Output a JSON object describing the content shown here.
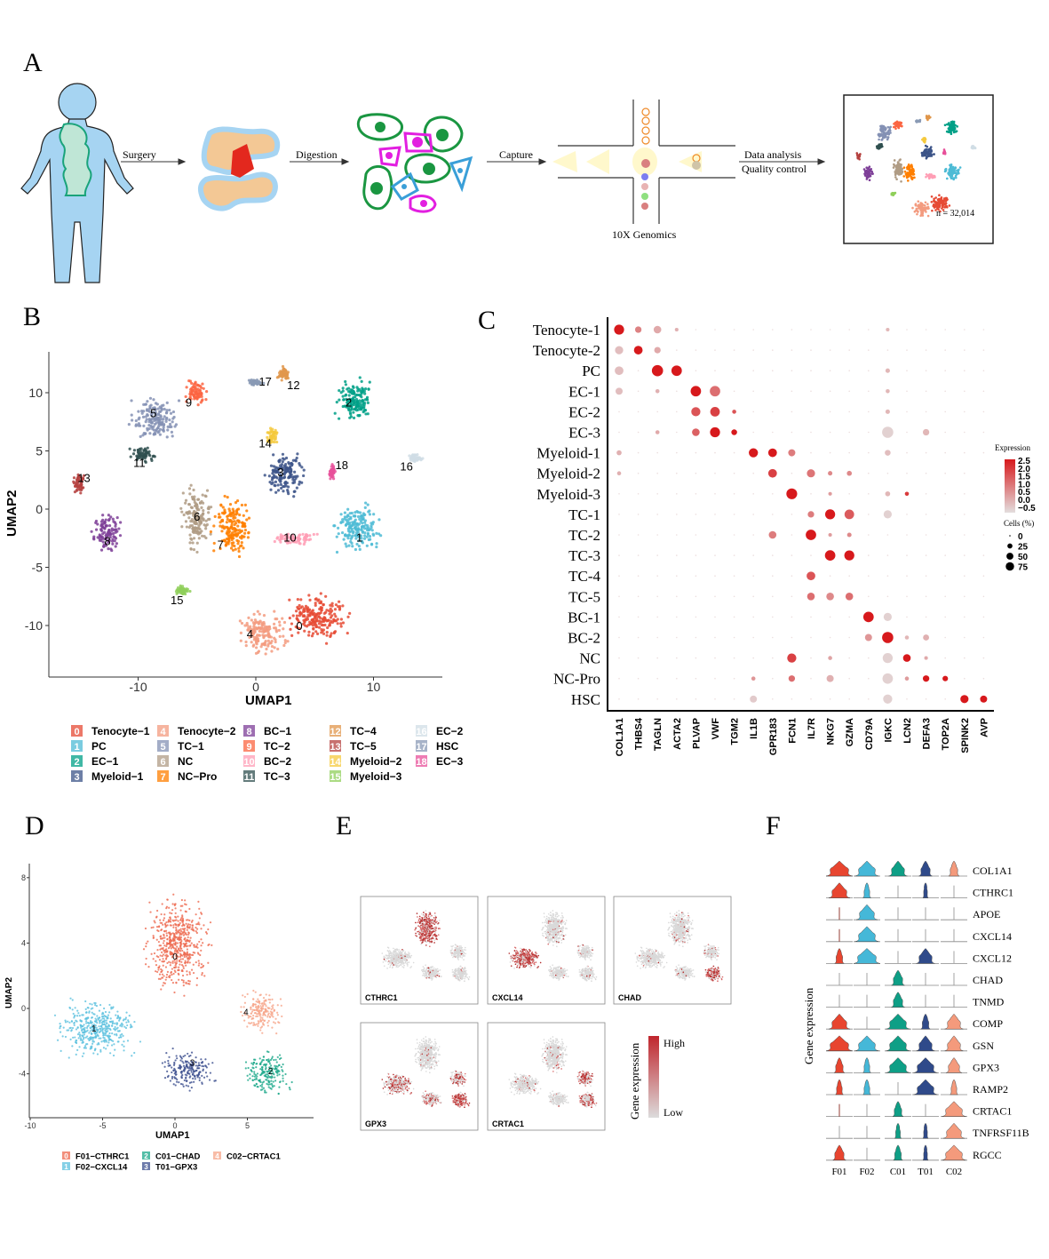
{
  "panel_letters": {
    "a": "A",
    "b": "B",
    "c": "C",
    "d": "D",
    "e": "E",
    "f": "F"
  },
  "workflow": {
    "steps": [
      "Surgery",
      "Digestion",
      "Capture"
    ],
    "platform": "10X Genomics",
    "analysis_line1": "Data analysis",
    "analysis_line2": "Quality control",
    "cell_count": "n = 32,014"
  },
  "colors": {
    "body": "#a6d4f2",
    "tendon": "#f3c895",
    "cell_green": "#1a9641",
    "cell_magenta": "#e21fe0",
    "cell_blue": "#3a9fd8",
    "expr_high": "#d7191c",
    "expr_low": "#e3dede"
  },
  "chart_data": [
    {
      "id": "B",
      "type": "scatter",
      "xlabel": "UMAP1",
      "ylabel": "UMAP2",
      "xticks": [
        -10,
        0,
        10
      ],
      "yticks": [
        10,
        5,
        0,
        -5,
        -10
      ],
      "xlim": [
        -18,
        16
      ],
      "ylim": [
        -14.5,
        13
      ],
      "grid": false,
      "legend_position": "bottom",
      "clusters": [
        {
          "id": "0",
          "name": "Tenocyte−1",
          "color": "#e64b35",
          "centroid": [
            5.2,
            -9.3
          ],
          "spread": [
            3.2,
            2.4
          ],
          "label_at": [
            3.7,
            -10
          ]
        },
        {
          "id": "1",
          "name": "PC",
          "color": "#4dbbd5",
          "centroid": [
            8.6,
            -1.6
          ],
          "spread": [
            2.4,
            2.6
          ],
          "label_at": [
            8.8,
            -2.4
          ]
        },
        {
          "id": "2",
          "name": "EC−1",
          "color": "#00a087",
          "centroid": [
            8.3,
            9.4
          ],
          "spread": [
            2.0,
            2.4
          ],
          "label_at": [
            7.9,
            9.2
          ]
        },
        {
          "id": "3",
          "name": "Myeloid−1",
          "color": "#3c5488",
          "centroid": [
            2.4,
            3.0
          ],
          "spread": [
            2.2,
            2.2
          ],
          "label_at": [
            2.1,
            3.2
          ]
        },
        {
          "id": "4",
          "name": "Tenocyte−2",
          "color": "#f39b7f",
          "centroid": [
            0.6,
            -10.7
          ],
          "spread": [
            2.5,
            2.2
          ],
          "label_at": [
            -0.5,
            -10.7
          ]
        },
        {
          "id": "5",
          "name": "TC−1",
          "color": "#8491b4",
          "centroid": [
            -8.6,
            7.8
          ],
          "spread": [
            2.3,
            2.4
          ],
          "label_at": [
            -8.7,
            8.3
          ]
        },
        {
          "id": "6",
          "name": "NC",
          "color": "#b09c85",
          "centroid": [
            -5.0,
            -0.8
          ],
          "spread": [
            1.6,
            3.4
          ],
          "label_at": [
            -5.0,
            -0.6
          ]
        },
        {
          "id": "7",
          "name": "NC−Pro",
          "color": "#ff7f00",
          "centroid": [
            -2.0,
            -1.6
          ],
          "spread": [
            2.0,
            3.0
          ],
          "label_at": [
            -3.0,
            -3.0
          ]
        },
        {
          "id": "8",
          "name": "BC−1",
          "color": "#7e3f98",
          "centroid": [
            -12.6,
            -2.0
          ],
          "spread": [
            1.5,
            2.0
          ],
          "label_at": [
            -12.6,
            -2.7
          ]
        },
        {
          "id": "9",
          "name": "TC−2",
          "color": "#fb6542",
          "centroid": [
            -5.1,
            10.0
          ],
          "spread": [
            1.3,
            1.3
          ],
          "label_at": [
            -5.7,
            9.2
          ]
        },
        {
          "id": "10",
          "name": "BC−2",
          "color": "#ff9eb5",
          "centroid": [
            3.3,
            -2.6
          ],
          "spread": [
            2.2,
            0.7
          ],
          "label_at": [
            2.9,
            -2.4
          ]
        },
        {
          "id": "11",
          "name": "TC−3",
          "color": "#2f4f4f",
          "centroid": [
            -9.6,
            4.7
          ],
          "spread": [
            1.2,
            0.8
          ],
          "label_at": [
            -9.9,
            4.0
          ]
        },
        {
          "id": "12",
          "name": "TC−4",
          "color": "#e0964b",
          "centroid": [
            2.4,
            11.6
          ],
          "spread": [
            0.7,
            0.7
          ],
          "label_at": [
            3.2,
            10.7
          ]
        },
        {
          "id": "13",
          "name": "TC−5",
          "color": "#b5413f",
          "centroid": [
            -15.0,
            2.2
          ],
          "spread": [
            0.7,
            1.0
          ],
          "label_at": [
            -14.6,
            2.7
          ]
        },
        {
          "id": "14",
          "name": "Myeloid−2",
          "color": "#f5c93d",
          "centroid": [
            1.4,
            6.3
          ],
          "spread": [
            0.6,
            0.9
          ],
          "label_at": [
            0.8,
            5.7
          ]
        },
        {
          "id": "15",
          "name": "Myeloid−3",
          "color": "#8fcf5a",
          "centroid": [
            -6.2,
            -7.0
          ],
          "spread": [
            0.8,
            0.5
          ],
          "label_at": [
            -6.7,
            -7.8
          ]
        },
        {
          "id": "16",
          "name": "EC−2",
          "color": "#d0dde5",
          "centroid": [
            13.6,
            4.4
          ],
          "spread": [
            0.8,
            0.4
          ],
          "label_at": [
            12.8,
            3.7
          ]
        },
        {
          "id": "17",
          "name": "HSC",
          "color": "#8a9ab5",
          "centroid": [
            0.0,
            10.8
          ],
          "spread": [
            0.8,
            0.4
          ],
          "label_at": [
            0.8,
            11.0
          ]
        },
        {
          "id": "18",
          "name": "EC−3",
          "color": "#e8509a",
          "centroid": [
            6.5,
            3.2
          ],
          "spread": [
            0.3,
            0.8
          ],
          "label_at": [
            7.3,
            3.8
          ]
        }
      ]
    },
    {
      "id": "C",
      "type": "dot",
      "rows": [
        "Tenocyte-1",
        "Tenocyte-2",
        "PC",
        "EC-1",
        "EC-2",
        "EC-3",
        "Myeloid-1",
        "Myeloid-2",
        "Myeloid-3",
        "TC-1",
        "TC-2",
        "TC-3",
        "TC-4",
        "TC-5",
        "BC-1",
        "BC-2",
        "NC",
        "NC-Pro",
        "HSC"
      ],
      "genes": [
        "COL1A1",
        "THBS4",
        "TAGLN",
        "ACTA2",
        "PLVAP",
        "VWF",
        "TGM2",
        "IL1B",
        "GPR183",
        "FCN1",
        "IL7R",
        "NKG7",
        "GZMA",
        "CD79A",
        "IGKC",
        "LCN2",
        "DEFA3",
        "TOP2A",
        "SPINK2",
        "AVP"
      ],
      "dot_fields": [
        "row",
        "gene",
        "cells_pct",
        "avg_expression"
      ],
      "dots": [
        [
          0,
          0,
          60,
          2.5
        ],
        [
          0,
          1,
          25,
          0.9
        ],
        [
          0,
          2,
          35,
          0.3
        ],
        [
          0,
          3,
          8,
          0.2
        ],
        [
          0,
          14,
          8,
          0.1
        ],
        [
          1,
          0,
          40,
          0.0
        ],
        [
          1,
          1,
          45,
          2.5
        ],
        [
          1,
          2,
          25,
          0.3
        ],
        [
          2,
          0,
          45,
          0.0
        ],
        [
          2,
          2,
          75,
          2.5
        ],
        [
          2,
          3,
          65,
          2.5
        ],
        [
          2,
          14,
          12,
          0.1
        ],
        [
          3,
          0,
          30,
          0.0
        ],
        [
          3,
          2,
          10,
          0.2
        ],
        [
          3,
          4,
          65,
          2.5
        ],
        [
          3,
          5,
          65,
          1.2
        ],
        [
          3,
          14,
          10,
          0.1
        ],
        [
          4,
          4,
          50,
          1.6
        ],
        [
          4,
          5,
          55,
          1.9
        ],
        [
          4,
          6,
          10,
          1.6
        ],
        [
          4,
          14,
          12,
          0.1
        ],
        [
          5,
          2,
          10,
          0.3
        ],
        [
          5,
          4,
          35,
          1.4
        ],
        [
          5,
          5,
          60,
          2.5
        ],
        [
          5,
          6,
          20,
          2.5
        ],
        [
          5,
          14,
          75,
          -0.3
        ],
        [
          5,
          16,
          25,
          0.1
        ],
        [
          6,
          0,
          15,
          0.2
        ],
        [
          6,
          7,
          50,
          2.5
        ],
        [
          6,
          8,
          45,
          2.5
        ],
        [
          6,
          9,
          30,
          1.0
        ],
        [
          6,
          14,
          20,
          0.0
        ],
        [
          7,
          0,
          10,
          0.2
        ],
        [
          7,
          8,
          45,
          1.9
        ],
        [
          7,
          10,
          40,
          1.1
        ],
        [
          7,
          11,
          12,
          0.8
        ],
        [
          7,
          12,
          15,
          0.8
        ],
        [
          8,
          9,
          70,
          2.5
        ],
        [
          8,
          11,
          8,
          0.5
        ],
        [
          8,
          14,
          15,
          0.1
        ],
        [
          8,
          15,
          10,
          2.0
        ],
        [
          9,
          10,
          25,
          1.0
        ],
        [
          9,
          11,
          60,
          2.5
        ],
        [
          9,
          12,
          55,
          1.5
        ],
        [
          9,
          14,
          40,
          -0.3
        ],
        [
          10,
          8,
          35,
          1.0
        ],
        [
          10,
          10,
          65,
          2.5
        ],
        [
          10,
          11,
          8,
          0.5
        ],
        [
          10,
          12,
          12,
          0.8
        ],
        [
          11,
          11,
          65,
          2.5
        ],
        [
          11,
          12,
          60,
          2.5
        ],
        [
          12,
          10,
          45,
          1.6
        ],
        [
          13,
          10,
          35,
          1.2
        ],
        [
          13,
          11,
          35,
          0.8
        ],
        [
          13,
          12,
          35,
          1.2
        ],
        [
          14,
          13,
          65,
          2.5
        ],
        [
          14,
          14,
          40,
          -0.3
        ],
        [
          15,
          13,
          30,
          0.6
        ],
        [
          15,
          14,
          75,
          2.5
        ],
        [
          15,
          15,
          10,
          0.1
        ],
        [
          15,
          16,
          22,
          0.2
        ],
        [
          16,
          9,
          50,
          1.9
        ],
        [
          16,
          11,
          10,
          0.4
        ],
        [
          16,
          14,
          60,
          -0.3
        ],
        [
          16,
          15,
          35,
          2.5
        ],
        [
          16,
          16,
          8,
          0.3
        ],
        [
          17,
          7,
          10,
          0.6
        ],
        [
          17,
          9,
          25,
          1.2
        ],
        [
          17,
          11,
          30,
          0.2
        ],
        [
          17,
          14,
          65,
          -0.3
        ],
        [
          17,
          15,
          10,
          0.5
        ],
        [
          17,
          16,
          25,
          2.5
        ],
        [
          17,
          17,
          18,
          2.5
        ],
        [
          18,
          7,
          30,
          -0.2
        ],
        [
          18,
          14,
          50,
          -0.3
        ],
        [
          18,
          18,
          40,
          2.5
        ],
        [
          18,
          19,
          30,
          2.5
        ]
      ],
      "color_legend": {
        "title": "Expression",
        "ticks": [
          "2.5",
          "2.0",
          "1.5",
          "1.0",
          "0.5",
          "0.0",
          "−0.5"
        ]
      },
      "size_legend": {
        "title": "Cells (%)",
        "ticks": [
          "0",
          "25",
          "50",
          "75"
        ]
      }
    },
    {
      "id": "D",
      "type": "scatter",
      "xlabel": "UMAP1",
      "ylabel": "UMAP2",
      "xticks": [
        -10,
        -5,
        0,
        5
      ],
      "yticks": [
        8,
        4,
        0,
        -4
      ],
      "xlim": [
        -10,
        9.5
      ],
      "ylim": [
        -6.7,
        9
      ],
      "grid": false,
      "legend_position": "bottom",
      "clusters": [
        {
          "id": "0",
          "name": "F01−CTHRC1",
          "short": "F01",
          "color": "#ee6a50",
          "centroid": [
            0.2,
            3.8
          ],
          "spread": [
            2.6,
            3.6
          ],
          "label_at": [
            0,
            3.2
          ]
        },
        {
          "id": "1",
          "name": "F02−CXCL14",
          "short": "F02",
          "color": "#5bc0de",
          "centroid": [
            -5.4,
            -1.2
          ],
          "spread": [
            3.4,
            2.1
          ],
          "label_at": [
            -5.6,
            -1.2
          ]
        },
        {
          "id": "2",
          "name": "C01−CHAD",
          "short": "C01",
          "color": "#1aa88a",
          "centroid": [
            6.4,
            -3.9
          ],
          "spread": [
            1.9,
            1.7
          ],
          "label_at": [
            6.6,
            -3.8
          ]
        },
        {
          "id": "3",
          "name": "T01−GPX3",
          "short": "T01",
          "color": "#3c4f8f",
          "centroid": [
            0.8,
            -3.8
          ],
          "spread": [
            2.2,
            1.5
          ],
          "label_at": [
            1.2,
            -3.3
          ]
        },
        {
          "id": "4",
          "name": "C02−CRTAC1",
          "short": "C02",
          "color": "#f6a58a",
          "centroid": [
            6.0,
            -0.2
          ],
          "spread": [
            1.9,
            1.6
          ],
          "label_at": [
            4.9,
            -0.2
          ]
        }
      ]
    },
    {
      "id": "E",
      "type": "scatter",
      "panels": [
        {
          "gene": "CTHRC1",
          "high_clusters": [
            "0"
          ]
        },
        {
          "gene": "CXCL14",
          "high_clusters": [
            "1"
          ]
        },
        {
          "gene": "CHAD",
          "high_clusters": [
            "2"
          ]
        },
        {
          "gene": "GPX3",
          "high_clusters": [
            "2",
            "3",
            "4",
            "1"
          ]
        },
        {
          "gene": "CRTAC1",
          "high_clusters": [
            "4",
            "2"
          ]
        }
      ],
      "legend": {
        "title": "Gene expression",
        "high": "High",
        "low": "Low"
      }
    },
    {
      "id": "F",
      "type": "violin",
      "ylabel": "Gene expression",
      "groups": [
        "F01",
        "F02",
        "C01",
        "T01",
        "C02"
      ],
      "group_colors": [
        "#e8452f",
        "#45b8d8",
        "#0e9f86",
        "#2f4a8a",
        "#f49a7c"
      ],
      "genes": [
        {
          "gene": "COL1A1",
          "relative_density": [
            1,
            0.9,
            0.7,
            0.5,
            0.4
          ]
        },
        {
          "gene": "CTHRC1",
          "relative_density": [
            0.8,
            0.3,
            0,
            0.2,
            0
          ]
        },
        {
          "gene": "APOE",
          "relative_density": [
            0.05,
            0.8,
            0,
            0,
            0
          ]
        },
        {
          "gene": "CXCL14",
          "relative_density": [
            0.05,
            0.9,
            0,
            0,
            0
          ]
        },
        {
          "gene": "CXCL12",
          "relative_density": [
            0.35,
            1,
            0,
            0.7,
            0
          ]
        },
        {
          "gene": "CHAD",
          "relative_density": [
            0,
            0,
            0.5,
            0,
            0
          ]
        },
        {
          "gene": "TNMD",
          "relative_density": [
            0,
            0,
            0.5,
            0,
            0
          ]
        },
        {
          "gene": "COMP",
          "relative_density": [
            0.8,
            0,
            0.9,
            0.35,
            0.7
          ]
        },
        {
          "gene": "GSN",
          "relative_density": [
            1,
            0.9,
            0.9,
            0.7,
            0.7
          ]
        },
        {
          "gene": "GPX3",
          "relative_density": [
            0.4,
            0.3,
            0.9,
            0.9,
            0.6
          ]
        },
        {
          "gene": "RAMP2",
          "relative_density": [
            0.3,
            0.3,
            0,
            0.9,
            0.3
          ]
        },
        {
          "gene": "CRTAC1",
          "relative_density": [
            0.05,
            0,
            0.4,
            0,
            0.9
          ]
        },
        {
          "gene": "TNFRSF11B",
          "relative_density": [
            0,
            0,
            0.25,
            0.2,
            0.8
          ]
        },
        {
          "gene": "RGCC",
          "relative_density": [
            0.5,
            0,
            0.35,
            0.2,
            0.9
          ]
        }
      ]
    }
  ]
}
